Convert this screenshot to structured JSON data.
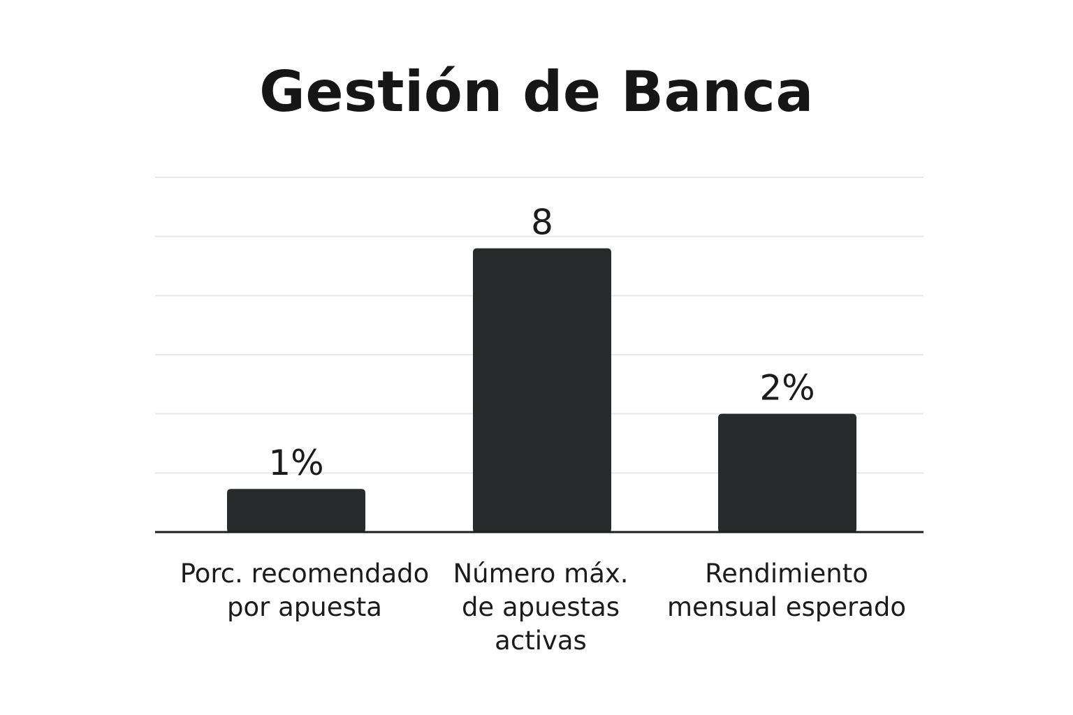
{
  "chart_data": {
    "type": "bar",
    "title": "Gestión de Banca",
    "categories": [
      "Porc. recomendado\npor apuesta",
      "Número máx.\nde apuestas\nactivas",
      "Rendimiento\nmensual esperado"
    ],
    "values": [
      1,
      8,
      2
    ],
    "value_labels": [
      "1%",
      "8",
      "2%"
    ],
    "grid": true,
    "legend": "none",
    "bar_color": "#282a2b",
    "visual_heights": [
      0.73,
      4.8,
      2.0
    ],
    "ylim": [
      0,
      6
    ]
  }
}
